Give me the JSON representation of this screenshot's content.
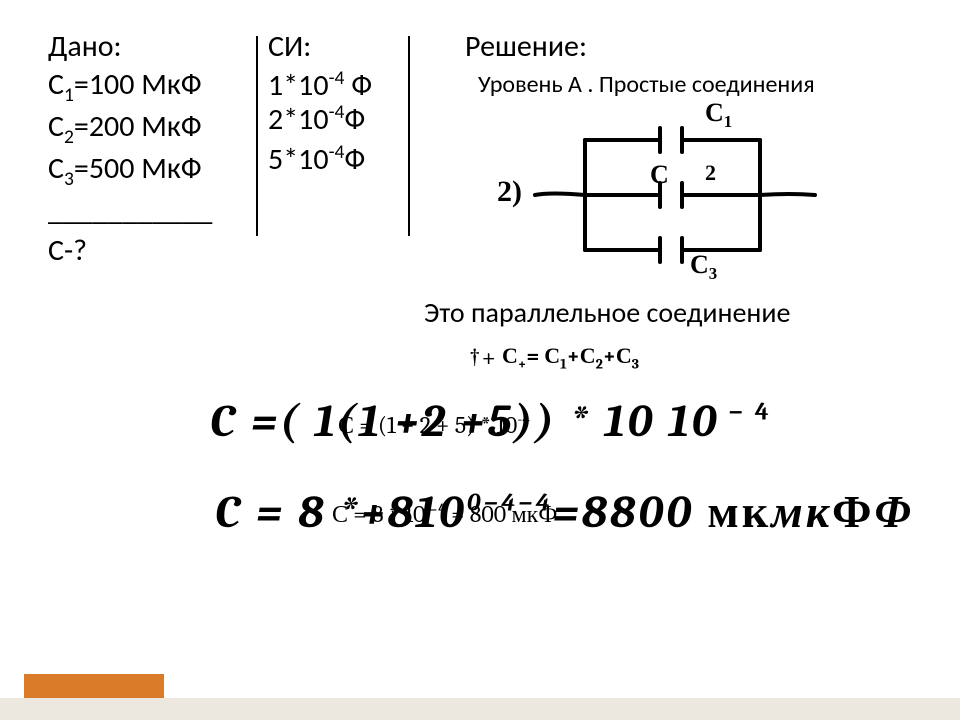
{
  "headers": {
    "given": "Дано:",
    "si": "СИ:",
    "solution": "Решение:"
  },
  "given": {
    "c1": "С₁=100 МкФ",
    "c2": "С₂=200 МкФ",
    "c3": "С₃=500 МкФ",
    "find": "С-?"
  },
  "si": {
    "c1": "1*10⁻⁴ Ф",
    "c2": "2*10⁻⁴Ф",
    "c3": "5*10⁻⁴Ф"
  },
  "solution": {
    "level": "Уровень А . Простые соединения",
    "circuit_num": "2)",
    "description": "Это параллельное соединение",
    "formula_sum_html": "С<sub>†</sub>= С<sub>1</sub>+С<sub>2</sub>+С<sub>3</sub>",
    "formula_sum_prefix": "†+",
    "line2_outer_html": "<i>C</i> = (  1(1+2+5)) + 10 10<sup> − 4</sup>",
    "line2_inner_html": "С = (1 + 2 + 5) * 10<sup>-4</sup>",
    "line3_outer_html": "<i>C</i> = 8 *+810⁰⁻⁴<sup>−4</sup>=8800 мкмкФΦ",
    "line3_inner": "С = 8 * 10⁻⁴ = 800 мкФ"
  },
  "labels": {
    "c1": "C₁",
    "c2": "C₂",
    "c2_small": "2",
    "c3": "C₃"
  },
  "colors": {
    "text": "#000000",
    "bg": "#ffffff",
    "footer_orange": "#d97b29",
    "footer_grey": "#ede8df"
  }
}
